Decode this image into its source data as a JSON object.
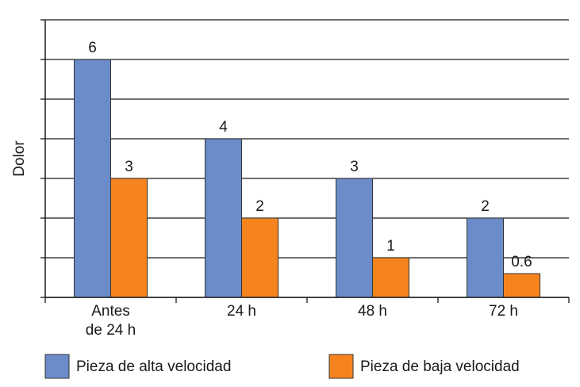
{
  "chart_data": {
    "type": "bar",
    "y_label": "Dolor",
    "categories": [
      "Antes de 24 h",
      "24 h",
      "48 h",
      "72 h"
    ],
    "series": [
      {
        "name": "Pieza de alta velocidad",
        "color": "#6b8cc9",
        "values": [
          6,
          4,
          3,
          2
        ]
      },
      {
        "name": "Pieza de baja velocidad",
        "color": "#f5841f",
        "values": [
          3,
          2,
          1,
          0.6
        ]
      }
    ],
    "ylim": [
      0,
      7
    ],
    "yticks": [
      0,
      1,
      2,
      3,
      4,
      5,
      6,
      7
    ],
    "grid": true
  }
}
